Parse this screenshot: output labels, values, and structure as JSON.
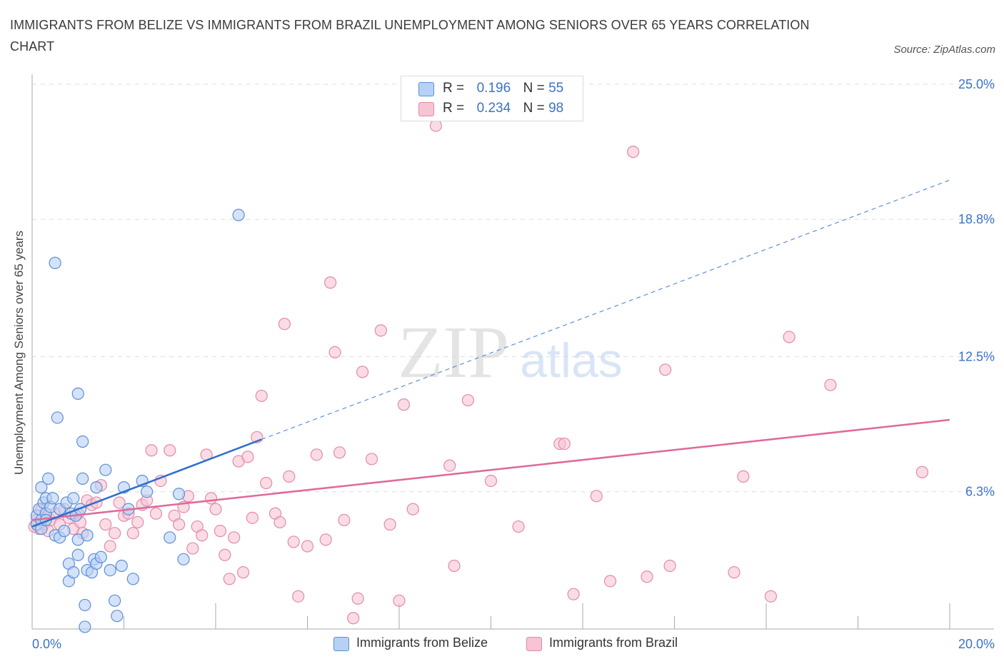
{
  "title": "IMMIGRANTS FROM BELIZE VS IMMIGRANTS FROM BRAZIL UNEMPLOYMENT AMONG SENIORS OVER 65 YEARS CORRELATION CHART",
  "source": "Source: ZipAtlas.com",
  "watermark": {
    "zip": "ZIP",
    "atlas": "atlas"
  },
  "legend": {
    "r_label": "R =",
    "n_label": "N =",
    "belize": {
      "r": "0.196",
      "n": "55"
    },
    "brazil": {
      "r": "0.234",
      "n": "98"
    }
  },
  "colors": {
    "belize_fill": "#b7d1f5",
    "belize_stroke": "#5c8fd6",
    "belize_line": "#2f6fcc",
    "brazil_fill": "#f7c4d3",
    "brazil_stroke": "#e48aa8",
    "brazil_line": "#e0699a",
    "tick_text": "#3b73c9"
  },
  "chart_data": {
    "type": "scatter",
    "title": "IMMIGRANTS FROM BELIZE VS IMMIGRANTS FROM BRAZIL UNEMPLOYMENT AMONG SENIORS OVER 65 YEARS CORRELATION CHART",
    "xlabel": "",
    "ylabel": "Unemployment Among Seniors over 65 years",
    "xlim": [
      0,
      20
    ],
    "ylim": [
      0,
      25
    ],
    "x_tick_labels": [
      "0.0%",
      "20.0%"
    ],
    "y_ticks": [
      6.3,
      12.5,
      18.8,
      25.0
    ],
    "y_tick_labels": [
      "6.3%",
      "12.5%",
      "18.8%",
      "25.0%"
    ],
    "grid": true,
    "legend_position": "top-center",
    "series": [
      {
        "name": "Immigrants from Belize",
        "r": 0.196,
        "n": 55,
        "trend_solid": [
          [
            0.0,
            4.7
          ],
          [
            5.0,
            8.7
          ]
        ],
        "trend_dashed": [
          [
            5.0,
            8.7
          ],
          [
            20.0,
            20.6
          ]
        ],
        "points": [
          [
            0.1,
            5.2
          ],
          [
            0.1,
            4.8
          ],
          [
            0.15,
            5.5
          ],
          [
            0.2,
            6.5
          ],
          [
            0.2,
            5.0
          ],
          [
            0.25,
            5.8
          ],
          [
            0.3,
            6.0
          ],
          [
            0.3,
            5.3
          ],
          [
            0.35,
            6.9
          ],
          [
            0.4,
            5.6
          ],
          [
            0.45,
            6.0
          ],
          [
            0.5,
            4.3
          ],
          [
            0.55,
            9.7
          ],
          [
            0.6,
            4.2
          ],
          [
            0.6,
            5.5
          ],
          [
            0.5,
            16.8
          ],
          [
            0.7,
            4.5
          ],
          [
            0.75,
            5.8
          ],
          [
            0.8,
            3.0
          ],
          [
            0.8,
            2.2
          ],
          [
            0.85,
            5.3
          ],
          [
            0.9,
            6.0
          ],
          [
            0.95,
            5.2
          ],
          [
            1.0,
            3.4
          ],
          [
            1.0,
            4.1
          ],
          [
            1.05,
            5.5
          ],
          [
            1.1,
            6.9
          ],
          [
            1.1,
            8.6
          ],
          [
            1.15,
            1.1
          ],
          [
            1.2,
            2.7
          ],
          [
            1.2,
            4.3
          ],
          [
            0.9,
            2.6
          ],
          [
            1.3,
            2.6
          ],
          [
            1.35,
            3.2
          ],
          [
            1.4,
            6.5
          ],
          [
            1.4,
            3.0
          ],
          [
            1.5,
            3.3
          ],
          [
            1.6,
            7.3
          ],
          [
            1.7,
            2.7
          ],
          [
            1.8,
            1.3
          ],
          [
            1.85,
            0.6
          ],
          [
            1.95,
            2.9
          ],
          [
            2.0,
            6.5
          ],
          [
            2.1,
            5.5
          ],
          [
            2.2,
            2.3
          ],
          [
            2.4,
            6.8
          ],
          [
            2.5,
            6.3
          ],
          [
            3.0,
            4.2
          ],
          [
            3.2,
            6.2
          ],
          [
            3.3,
            3.2
          ],
          [
            4.5,
            19.0
          ],
          [
            1.0,
            10.8
          ],
          [
            1.15,
            0.1
          ],
          [
            0.2,
            4.6
          ],
          [
            0.3,
            5.0
          ]
        ]
      },
      {
        "name": "Immigrants from Brazil",
        "r": 0.234,
        "n": 98,
        "trend": [
          [
            0.0,
            5.0
          ],
          [
            20.0,
            9.6
          ]
        ],
        "points": [
          [
            0.1,
            5.0
          ],
          [
            0.15,
            4.6
          ],
          [
            0.2,
            5.5
          ],
          [
            0.25,
            4.8
          ],
          [
            0.3,
            5.2
          ],
          [
            0.35,
            4.5
          ],
          [
            0.4,
            5.0
          ],
          [
            0.5,
            5.3
          ],
          [
            0.6,
            4.8
          ],
          [
            0.7,
            5.5
          ],
          [
            0.8,
            5.1
          ],
          [
            0.9,
            4.6
          ],
          [
            1.0,
            5.3
          ],
          [
            1.05,
            4.9
          ],
          [
            1.1,
            4.4
          ],
          [
            1.2,
            5.9
          ],
          [
            1.3,
            5.7
          ],
          [
            1.4,
            5.8
          ],
          [
            1.5,
            6.6
          ],
          [
            1.6,
            4.8
          ],
          [
            1.7,
            3.8
          ],
          [
            1.8,
            4.4
          ],
          [
            1.9,
            5.8
          ],
          [
            2.0,
            5.2
          ],
          [
            2.1,
            5.3
          ],
          [
            2.2,
            4.4
          ],
          [
            2.3,
            4.9
          ],
          [
            2.4,
            5.7
          ],
          [
            2.5,
            5.9
          ],
          [
            2.6,
            8.2
          ],
          [
            2.7,
            5.3
          ],
          [
            2.8,
            6.8
          ],
          [
            3.0,
            8.2
          ],
          [
            3.1,
            5.2
          ],
          [
            3.2,
            4.8
          ],
          [
            3.3,
            5.6
          ],
          [
            3.4,
            6.1
          ],
          [
            3.5,
            3.7
          ],
          [
            3.6,
            4.7
          ],
          [
            3.7,
            4.3
          ],
          [
            3.8,
            8.0
          ],
          [
            3.9,
            6.0
          ],
          [
            4.0,
            5.5
          ],
          [
            4.1,
            4.5
          ],
          [
            4.2,
            3.4
          ],
          [
            4.3,
            2.3
          ],
          [
            4.4,
            4.2
          ],
          [
            4.5,
            7.7
          ],
          [
            4.6,
            2.6
          ],
          [
            4.7,
            7.9
          ],
          [
            4.8,
            5.1
          ],
          [
            4.9,
            8.8
          ],
          [
            5.0,
            10.7
          ],
          [
            5.1,
            6.7
          ],
          [
            5.3,
            5.3
          ],
          [
            5.4,
            4.9
          ],
          [
            5.5,
            14.0
          ],
          [
            5.6,
            7.0
          ],
          [
            5.7,
            4.0
          ],
          [
            5.8,
            1.5
          ],
          [
            6.0,
            3.8
          ],
          [
            6.2,
            8.0
          ],
          [
            6.4,
            4.1
          ],
          [
            6.5,
            15.9
          ],
          [
            6.6,
            12.7
          ],
          [
            6.7,
            8.1
          ],
          [
            6.8,
            5.0
          ],
          [
            7.0,
            0.5
          ],
          [
            7.1,
            1.4
          ],
          [
            7.2,
            11.8
          ],
          [
            7.4,
            7.8
          ],
          [
            7.6,
            13.7
          ],
          [
            7.8,
            4.8
          ],
          [
            8.0,
            1.3
          ],
          [
            8.1,
            10.3
          ],
          [
            8.3,
            5.5
          ],
          [
            8.8,
            23.1
          ],
          [
            9.1,
            7.5
          ],
          [
            9.2,
            2.9
          ],
          [
            9.5,
            10.5
          ],
          [
            10.0,
            6.8
          ],
          [
            10.6,
            4.7
          ],
          [
            11.5,
            8.5
          ],
          [
            11.6,
            8.5
          ],
          [
            11.8,
            1.6
          ],
          [
            12.3,
            6.1
          ],
          [
            12.6,
            2.2
          ],
          [
            13.1,
            21.9
          ],
          [
            13.4,
            2.4
          ],
          [
            13.8,
            11.9
          ],
          [
            13.9,
            2.9
          ],
          [
            15.3,
            2.6
          ],
          [
            15.5,
            7.0
          ],
          [
            16.1,
            1.5
          ],
          [
            16.5,
            13.4
          ],
          [
            17.4,
            11.2
          ],
          [
            19.4,
            7.2
          ],
          [
            0.05,
            4.7
          ]
        ]
      }
    ]
  }
}
